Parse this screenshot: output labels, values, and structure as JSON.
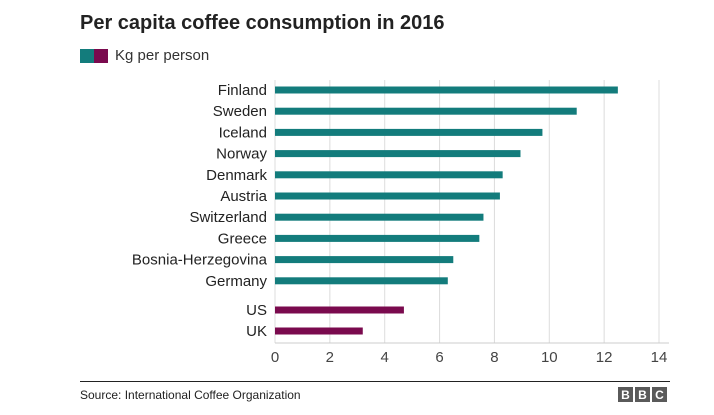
{
  "colors": {
    "nordic": "#137c7c",
    "anglo": "#7a0a4e",
    "grid": "#dcdcdc",
    "text": "#222222"
  },
  "footer": {
    "source": "Source: International Coffee Organization",
    "logo": [
      "B",
      "B",
      "C"
    ]
  },
  "chart_data": {
    "type": "bar",
    "orientation": "horizontal",
    "title": "Per capita coffee consumption in 2016",
    "legend": {
      "label": "Kg per person",
      "placement": "top-left"
    },
    "xlabel": "",
    "ylabel": "",
    "xlim": [
      0,
      14
    ],
    "xticks": [
      0,
      2,
      4,
      6,
      8,
      10,
      12,
      14
    ],
    "grid": true,
    "categories": [
      "Finland",
      "Sweden",
      "Iceland",
      "Norway",
      "Denmark",
      "Austria",
      "Switzerland",
      "Greece",
      "Bosnia-Herzegovina",
      "Germany",
      "US",
      "UK"
    ],
    "values": [
      12.5,
      11.0,
      9.75,
      8.95,
      8.3,
      8.2,
      7.6,
      7.45,
      6.5,
      6.3,
      4.7,
      3.2
    ],
    "groups": [
      "nordic",
      "nordic",
      "nordic",
      "nordic",
      "nordic",
      "nordic",
      "nordic",
      "nordic",
      "nordic",
      "nordic",
      "anglo",
      "anglo"
    ]
  }
}
